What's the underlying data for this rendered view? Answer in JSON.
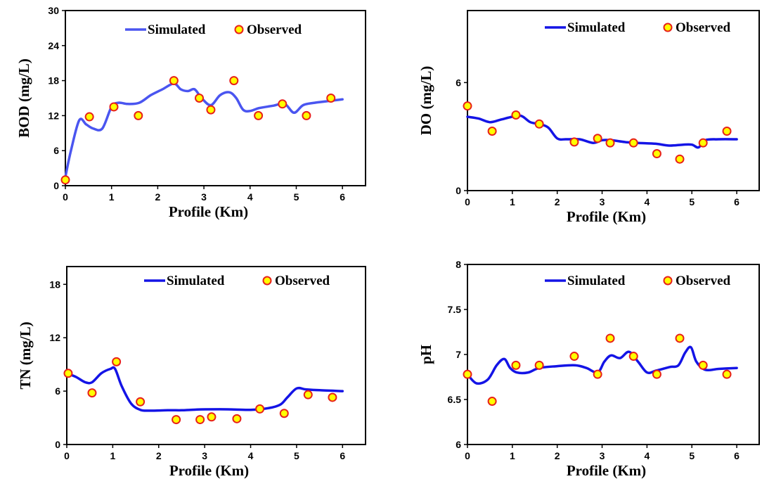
{
  "colors": {
    "simulated_line": "#1414e6",
    "bod_line": "#4a55f0",
    "marker_fill": "#ffff00",
    "marker_edge": "#e8201a"
  },
  "chart_data": [
    {
      "type": "line",
      "ylabel": "BOD (mg/L)",
      "xlabel": "Profile (Km)",
      "xlim": [
        0,
        6.5
      ],
      "ylim": [
        0,
        30
      ],
      "xticks": [
        "0",
        "1",
        "2",
        "3",
        "4",
        "5",
        "6"
      ],
      "yticks": [
        "0",
        "6",
        "12",
        "18",
        "24",
        "30"
      ],
      "legend": {
        "simulated": "Simulated",
        "observed": "Observed"
      },
      "simulated": {
        "x": [
          0,
          0.12,
          0.3,
          0.45,
          0.6,
          0.8,
          1.0,
          1.15,
          1.35,
          1.6,
          1.85,
          2.1,
          2.35,
          2.5,
          2.65,
          2.8,
          2.95,
          3.15,
          3.35,
          3.55,
          3.7,
          3.85,
          4.0,
          4.2,
          4.5,
          4.75,
          4.95,
          5.15,
          5.4,
          5.7,
          6.0
        ],
        "y": [
          1.5,
          6.0,
          11.2,
          10.5,
          9.8,
          9.8,
          13.5,
          14.2,
          14.0,
          14.2,
          15.5,
          16.5,
          17.5,
          16.5,
          16.2,
          16.5,
          15.0,
          13.8,
          15.5,
          16.0,
          15.0,
          13.0,
          12.8,
          13.3,
          13.7,
          14.0,
          12.5,
          13.8,
          14.2,
          14.5,
          14.8
        ]
      },
      "observed": {
        "x": [
          0,
          0.52,
          1.05,
          1.58,
          2.35,
          2.9,
          3.15,
          3.65,
          4.18,
          4.7,
          5.22,
          5.75
        ],
        "y": [
          1,
          11.8,
          13.5,
          12.0,
          18.0,
          15.0,
          13.0,
          18.0,
          12.0,
          14.0,
          12.0,
          15.0
        ]
      }
    },
    {
      "type": "line",
      "ylabel": "DO (mg/L)",
      "xlabel": "Profile (Km)",
      "xlim": [
        0,
        6.5
      ],
      "ylim": [
        0,
        10
      ],
      "xticks": [
        "0",
        "1",
        "2",
        "3",
        "4",
        "5",
        "6"
      ],
      "yticks": [
        "0",
        "6"
      ],
      "ytick_values": [
        0,
        6
      ],
      "legend": {
        "simulated": "Simulated",
        "observed": "Observed"
      },
      "simulated": {
        "x": [
          0,
          0.25,
          0.5,
          0.75,
          1.0,
          1.2,
          1.4,
          1.6,
          1.8,
          2.0,
          2.2,
          2.5,
          2.8,
          3.0,
          3.2,
          3.5,
          3.8,
          4.2,
          4.5,
          4.8,
          5.0,
          5.15,
          5.3,
          5.6,
          6.0
        ],
        "y": [
          4.1,
          4.0,
          3.8,
          3.95,
          4.1,
          4.15,
          3.8,
          3.7,
          3.5,
          2.9,
          2.85,
          2.85,
          2.65,
          2.8,
          2.8,
          2.7,
          2.65,
          2.6,
          2.5,
          2.55,
          2.55,
          2.4,
          2.8,
          2.85,
          2.85
        ]
      },
      "observed": {
        "x": [
          0,
          0.55,
          1.08,
          1.6,
          2.38,
          2.9,
          3.18,
          3.7,
          4.22,
          4.73,
          5.25,
          5.78
        ],
        "y": [
          4.7,
          3.3,
          4.2,
          3.7,
          2.7,
          2.9,
          2.65,
          2.65,
          2.05,
          1.75,
          2.65,
          3.3
        ]
      }
    },
    {
      "type": "line",
      "ylabel": "TN (mg/L)",
      "xlabel": "Profile (Km)",
      "xlim": [
        0,
        6.5
      ],
      "ylim": [
        0,
        20
      ],
      "xticks": [
        "0",
        "1",
        "2",
        "3",
        "4",
        "5",
        "6"
      ],
      "yticks": [
        "0",
        "6",
        "12",
        "18"
      ],
      "ytick_values": [
        0,
        6,
        12,
        18
      ],
      "legend": {
        "simulated": "Simulated",
        "observed": "Observed"
      },
      "simulated": {
        "x": [
          0,
          0.2,
          0.4,
          0.55,
          0.75,
          0.95,
          1.05,
          1.2,
          1.4,
          1.6,
          1.8,
          2.2,
          2.5,
          2.7,
          3.0,
          3.5,
          4.0,
          4.4,
          4.65,
          4.8,
          5.0,
          5.2,
          5.5,
          6.0
        ],
        "y": [
          8.0,
          7.6,
          7.0,
          7.0,
          8.0,
          8.5,
          8.5,
          6.5,
          4.6,
          3.9,
          3.8,
          3.85,
          3.85,
          3.9,
          3.95,
          3.95,
          3.9,
          4.1,
          4.5,
          5.3,
          6.3,
          6.2,
          6.1,
          6.0
        ]
      },
      "observed": {
        "x": [
          0.03,
          0.55,
          1.08,
          1.6,
          2.38,
          2.9,
          3.15,
          3.7,
          4.2,
          4.73,
          5.25,
          5.78
        ],
        "y": [
          8.0,
          5.8,
          9.3,
          4.8,
          2.8,
          2.8,
          3.1,
          2.9,
          4.0,
          3.5,
          5.6,
          5.3
        ]
      }
    },
    {
      "type": "line",
      "ylabel": "pH",
      "xlabel": "Profile (Km)",
      "xlim": [
        0,
        6.5
      ],
      "ylim": [
        6,
        8
      ],
      "xticks": [
        "0",
        "1",
        "2",
        "3",
        "4",
        "5",
        "6"
      ],
      "yticks": [
        "6",
        "6.5",
        "7",
        "7.5",
        "8"
      ],
      "ytick_values": [
        6,
        6.5,
        7,
        7.5,
        8
      ],
      "legend": {
        "simulated": "Simulated",
        "observed": "Observed"
      },
      "simulated": {
        "x": [
          0,
          0.2,
          0.45,
          0.65,
          0.82,
          0.95,
          1.1,
          1.35,
          1.6,
          2.0,
          2.4,
          2.65,
          2.9,
          3.05,
          3.2,
          3.4,
          3.6,
          3.8,
          4.0,
          4.2,
          4.5,
          4.7,
          4.85,
          4.98,
          5.1,
          5.3,
          5.6,
          6.0
        ],
        "y": [
          6.78,
          6.68,
          6.72,
          6.88,
          6.95,
          6.85,
          6.8,
          6.8,
          6.85,
          6.87,
          6.88,
          6.85,
          6.8,
          6.92,
          6.99,
          6.96,
          7.03,
          6.92,
          6.8,
          6.82,
          6.86,
          6.88,
          7.02,
          7.08,
          6.92,
          6.83,
          6.84,
          6.85
        ]
      },
      "observed": {
        "x": [
          0,
          0.55,
          1.08,
          1.6,
          2.38,
          2.9,
          3.18,
          3.7,
          4.22,
          4.73,
          5.25,
          5.78
        ],
        "y": [
          6.78,
          6.48,
          6.88,
          6.88,
          6.98,
          6.78,
          7.18,
          6.98,
          6.78,
          7.18,
          6.88,
          6.78
        ]
      }
    }
  ]
}
